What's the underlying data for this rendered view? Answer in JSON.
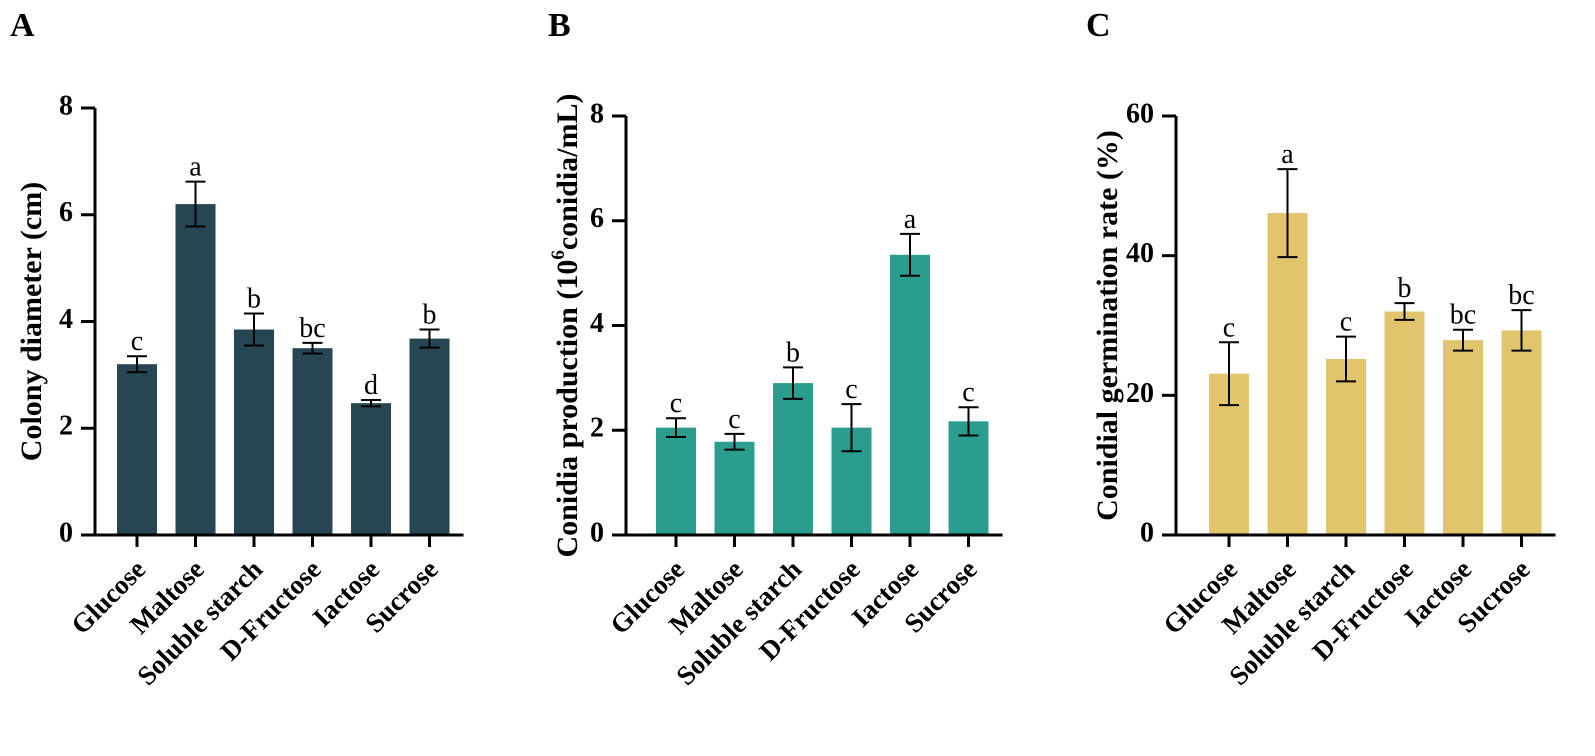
{
  "chart_data": [
    {
      "type": "bar",
      "panel": "A",
      "title": "",
      "xlabel": "",
      "ylabel": "Colony diameter (cm)",
      "ylim": [
        0,
        8
      ],
      "yticks": [
        0,
        2,
        4,
        6,
        8
      ],
      "categories": [
        "Glucose",
        "Maltose",
        "Soluble starch",
        "D-Fructose",
        "Iactose",
        "Sucrose"
      ],
      "values": [
        3.2,
        6.2,
        3.85,
        3.5,
        2.47,
        3.68
      ],
      "errors": [
        0.15,
        0.42,
        0.3,
        0.1,
        0.06,
        0.17
      ],
      "significance": [
        "c",
        "a",
        "b",
        "bc",
        "d",
        "b"
      ],
      "color": "#264653"
    },
    {
      "type": "bar",
      "panel": "B",
      "title": "",
      "xlabel": "",
      "ylabel_prefix": "Conidia production (10",
      "ylabel_sup": "6",
      "ylabel_suffix": "conidia/mL)",
      "ylim": [
        0,
        8
      ],
      "yticks": [
        0,
        2,
        4,
        6,
        8
      ],
      "categories": [
        "Glucose",
        "Maltose",
        "Soluble starch",
        "D-Fructose",
        "Iactose",
        "Sucrose"
      ],
      "values": [
        2.05,
        1.78,
        2.9,
        2.05,
        5.35,
        2.17
      ],
      "errors": [
        0.18,
        0.15,
        0.3,
        0.45,
        0.4,
        0.27
      ],
      "significance": [
        "c",
        "c",
        "b",
        "c",
        "a",
        "c"
      ],
      "color": "#2a9d8f"
    },
    {
      "type": "bar",
      "panel": "C",
      "title": "",
      "xlabel": "",
      "ylabel": "Conidial germination rate (%)",
      "ylim": [
        0,
        60
      ],
      "yticks": [
        0,
        20,
        40,
        60
      ],
      "categories": [
        "Glucose",
        "Maltose",
        "Soluble starch",
        "D-Fructose",
        "Iactose",
        "Sucrose"
      ],
      "values": [
        23.1,
        46.1,
        25.2,
        32.0,
        27.9,
        29.3
      ],
      "errors": [
        4.5,
        6.3,
        3.2,
        1.2,
        1.5,
        2.9
      ],
      "significance": [
        "c",
        "a",
        "c",
        "b",
        "bc",
        "bc"
      ],
      "color": "#e2c46c"
    }
  ]
}
